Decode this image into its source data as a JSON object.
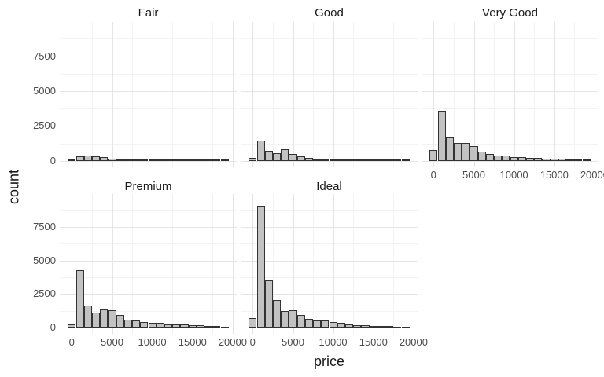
{
  "chart_data": {
    "type": "histogram",
    "title": "",
    "xlabel": "price",
    "ylabel": "count",
    "facet_variable": "cut",
    "bin_width": 1000,
    "bin_centers": [
      0,
      1000,
      2000,
      3000,
      4000,
      5000,
      6000,
      7000,
      8000,
      9000,
      10000,
      11000,
      12000,
      13000,
      14000,
      15000,
      16000,
      17000,
      18000,
      19000
    ],
    "x_domain": [
      -1500,
      20500
    ],
    "y_domain": [
      -460,
      9950
    ],
    "x_ticks": [
      0,
      5000,
      10000,
      15000,
      20000
    ],
    "x_minor_ticks": [
      2500,
      7500,
      12500,
      17500
    ],
    "y_ticks": [
      0,
      2500,
      5000,
      7500
    ],
    "y_minor_ticks": [
      1250,
      3750,
      6250,
      8750
    ],
    "grid": "on",
    "legend": "none",
    "facets": [
      {
        "label": "Fair",
        "row": 0,
        "col": 0,
        "show_x_axis": false,
        "values": [
          30,
          330,
          370,
          330,
          280,
          150,
          90,
          60,
          45,
          35,
          30,
          25,
          20,
          18,
          15,
          12,
          10,
          8,
          6,
          3
        ]
      },
      {
        "label": "Good",
        "row": 0,
        "col": 1,
        "show_x_axis": false,
        "values": [
          240,
          1440,
          710,
          580,
          820,
          520,
          355,
          205,
          95,
          95,
          75,
          60,
          50,
          45,
          40,
          40,
          35,
          30,
          25,
          15
        ]
      },
      {
        "label": "Very Good",
        "row": 0,
        "col": 2,
        "show_x_axis": true,
        "values": [
          770,
          3600,
          1700,
          1300,
          1270,
          1050,
          670,
          500,
          410,
          370,
          300,
          260,
          220,
          190,
          170,
          170,
          150,
          130,
          95,
          40
        ]
      },
      {
        "label": "Premium",
        "row": 1,
        "col": 0,
        "show_x_axis": true,
        "values": [
          250,
          4300,
          1650,
          1100,
          1350,
          1300,
          950,
          600,
          520,
          410,
          340,
          340,
          260,
          240,
          220,
          210,
          190,
          150,
          130,
          60
        ]
      },
      {
        "label": "Ideal",
        "row": 1,
        "col": 1,
        "show_x_axis": true,
        "values": [
          700,
          9050,
          3500,
          2030,
          1250,
          1300,
          920,
          680,
          560,
          510,
          410,
          360,
          240,
          210,
          170,
          150,
          130,
          110,
          95,
          40
        ]
      }
    ],
    "colors": {
      "bar_fill": "#c2c2c2",
      "bar_stroke": "#333333",
      "grid_major": "#e5e5e5",
      "grid_minor": "#f3f3f3",
      "axis_text": "#4d4d4d",
      "title_text": "#1a1a1a",
      "background": "#ffffff"
    }
  }
}
